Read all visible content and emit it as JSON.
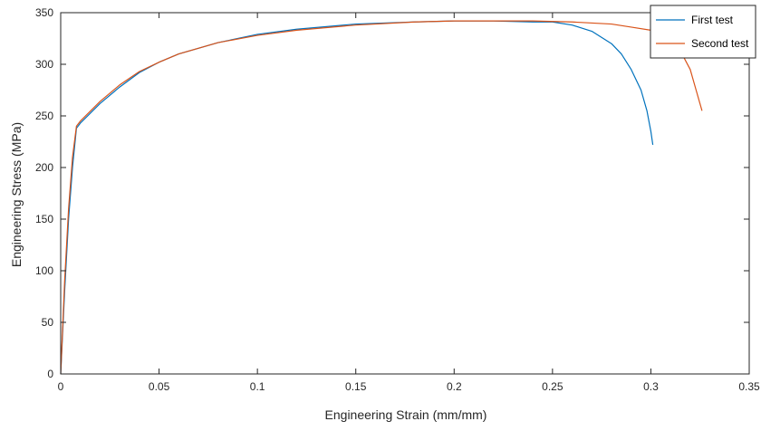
{
  "chart_data": {
    "type": "line",
    "title": "",
    "xlabel": "Engineering Strain (mm/mm)",
    "ylabel": "Engineering Stress (MPa)",
    "xlim": [
      0,
      0.35
    ],
    "ylim": [
      0,
      350
    ],
    "xticks": [
      0,
      0.05,
      0.1,
      0.15,
      0.2,
      0.25,
      0.3,
      0.35
    ],
    "xtick_labels": [
      "0",
      "0.05",
      "0.1",
      "0.15",
      "0.2",
      "0.25",
      "0.3",
      "0.35"
    ],
    "yticks": [
      0,
      50,
      100,
      150,
      200,
      250,
      300,
      350
    ],
    "ytick_labels": [
      "0",
      "50",
      "100",
      "150",
      "200",
      "250",
      "300",
      "350"
    ],
    "grid": false,
    "legend_position": "top-right",
    "series": [
      {
        "name": "First test",
        "color": "#0072BD",
        "x": [
          0,
          0.002,
          0.004,
          0.006,
          0.008,
          0.01,
          0.02,
          0.03,
          0.04,
          0.05,
          0.06,
          0.08,
          0.1,
          0.12,
          0.15,
          0.18,
          0.2,
          0.22,
          0.24,
          0.25,
          0.26,
          0.27,
          0.28,
          0.285,
          0.29,
          0.295,
          0.298,
          0.3,
          0.301
        ],
        "y": [
          0,
          80,
          150,
          200,
          238,
          243,
          262,
          278,
          292,
          302,
          310,
          321,
          329,
          334,
          339,
          341,
          342,
          342,
          341,
          341,
          338,
          332,
          320,
          310,
          295,
          275,
          255,
          235,
          222
        ]
      },
      {
        "name": "Second test",
        "color": "#D95319",
        "x": [
          0,
          0.002,
          0.004,
          0.006,
          0.008,
          0.01,
          0.02,
          0.03,
          0.04,
          0.05,
          0.06,
          0.08,
          0.1,
          0.12,
          0.15,
          0.18,
          0.2,
          0.22,
          0.24,
          0.26,
          0.28,
          0.29,
          0.3,
          0.31,
          0.315,
          0.32,
          0.323,
          0.326
        ],
        "y": [
          0,
          90,
          160,
          210,
          240,
          245,
          264,
          280,
          293,
          302,
          310,
          321,
          328,
          333,
          338,
          341,
          342,
          342,
          342,
          341,
          339,
          336,
          333,
          323,
          313,
          295,
          275,
          255
        ]
      }
    ]
  }
}
